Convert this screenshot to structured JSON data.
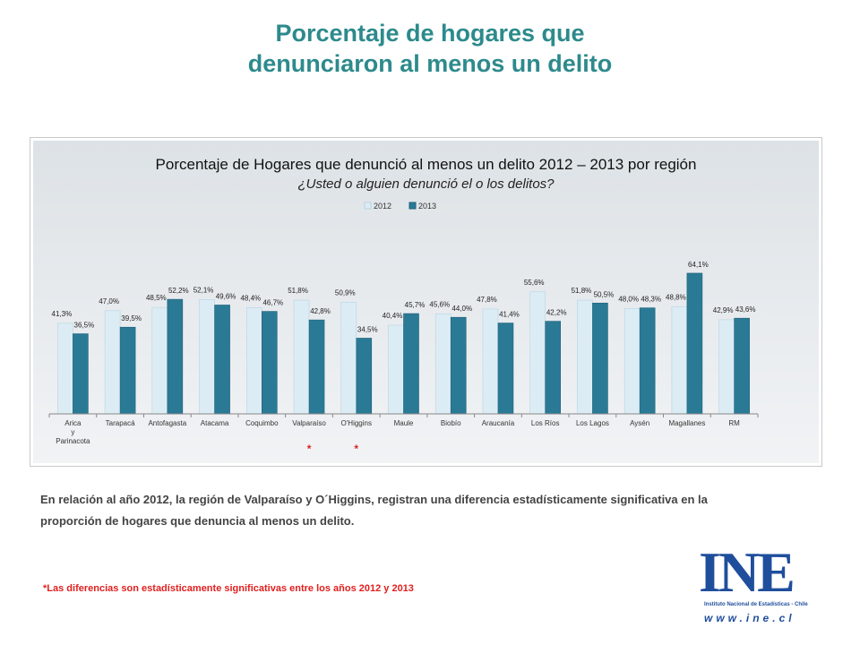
{
  "slide": {
    "title_line1": "Porcentaje de hogares que",
    "title_line2": "denunciaron al menos un delito",
    "body_text": "En relación al año 2012, la región de Valparaíso y O´Higgins, registran una diferencia estadísticamente significativa en la proporción de hogares que denuncia al menos un delito.",
    "footnote": "*Las diferencias son estadísticamente  significativas entre los años 2012 y 2013"
  },
  "logo": {
    "letters": "INE",
    "subtitle": "Instituto Nacional de Estadísticas - Chile",
    "url": "www.ine.cl"
  },
  "colors": {
    "title": "#2d8a8c",
    "series_2012": "#dcecf5",
    "series_2013": "#2a7a96",
    "asterisk": "#e0201f"
  },
  "chart_data": {
    "type": "bar",
    "title": "Porcentaje de Hogares que denunció al menos un delito 2012 – 2013 por región",
    "subtitle": "¿Usted o alguien denunció el o los delitos?",
    "categories": [
      "Arica y Parinacota",
      "Tarapacá",
      "Antofagasta",
      "Atacama",
      "Coquimbo",
      "Valparaíso",
      "O'Higgins",
      "Maule",
      "Biobío",
      "Araucanía",
      "Los Ríos",
      "Los Lagos",
      "Aysén",
      "Magallanes",
      "RM"
    ],
    "category_labels": [
      [
        "Arica",
        "y",
        "Parinacota"
      ],
      [
        "Tarapacá"
      ],
      [
        "Antofagasta"
      ],
      [
        "Atacama"
      ],
      [
        "Coquimbo"
      ],
      [
        "Valparaíso"
      ],
      [
        "O'Higgins"
      ],
      [
        "Maule"
      ],
      [
        "Biobío"
      ],
      [
        "Araucanía"
      ],
      [
        "Los Ríos"
      ],
      [
        "Los Lagos"
      ],
      [
        "Aysén"
      ],
      [
        "Magallanes"
      ],
      [
        "RM"
      ]
    ],
    "series": [
      {
        "name": "2012",
        "values": [
          41.3,
          47.0,
          48.5,
          52.1,
          48.4,
          51.8,
          50.9,
          40.4,
          45.6,
          47.8,
          55.6,
          51.8,
          48.0,
          48.8,
          42.9
        ],
        "labels": [
          "41,3%",
          "47,0%",
          "48,5%",
          "52,1%",
          "48,4%",
          "51,8%",
          "50,9%",
          "40,4%",
          "45,6%",
          "47,8%",
          "55,6%",
          "51,8%",
          "48,0%",
          "48,8%",
          "42,9%"
        ]
      },
      {
        "name": "2013",
        "values": [
          36.5,
          39.5,
          52.2,
          49.6,
          46.7,
          42.8,
          34.5,
          45.7,
          44.0,
          41.4,
          42.2,
          50.5,
          48.3,
          64.1,
          43.6
        ],
        "labels": [
          "36,5%",
          "39,5%",
          "52,2%",
          "49,6%",
          "46,7%",
          "42,8%",
          "34,5%",
          "45,7%",
          "44,0%",
          "41,4%",
          "42,2%",
          "50,5%",
          "48,3%",
          "64,1%",
          "43,6%"
        ]
      }
    ],
    "significant_marker": "*",
    "significant_categories": [
      "Valparaíso",
      "O'Higgins"
    ],
    "ylim": [
      0,
      70
    ],
    "legend": "top-center",
    "grid": false
  }
}
